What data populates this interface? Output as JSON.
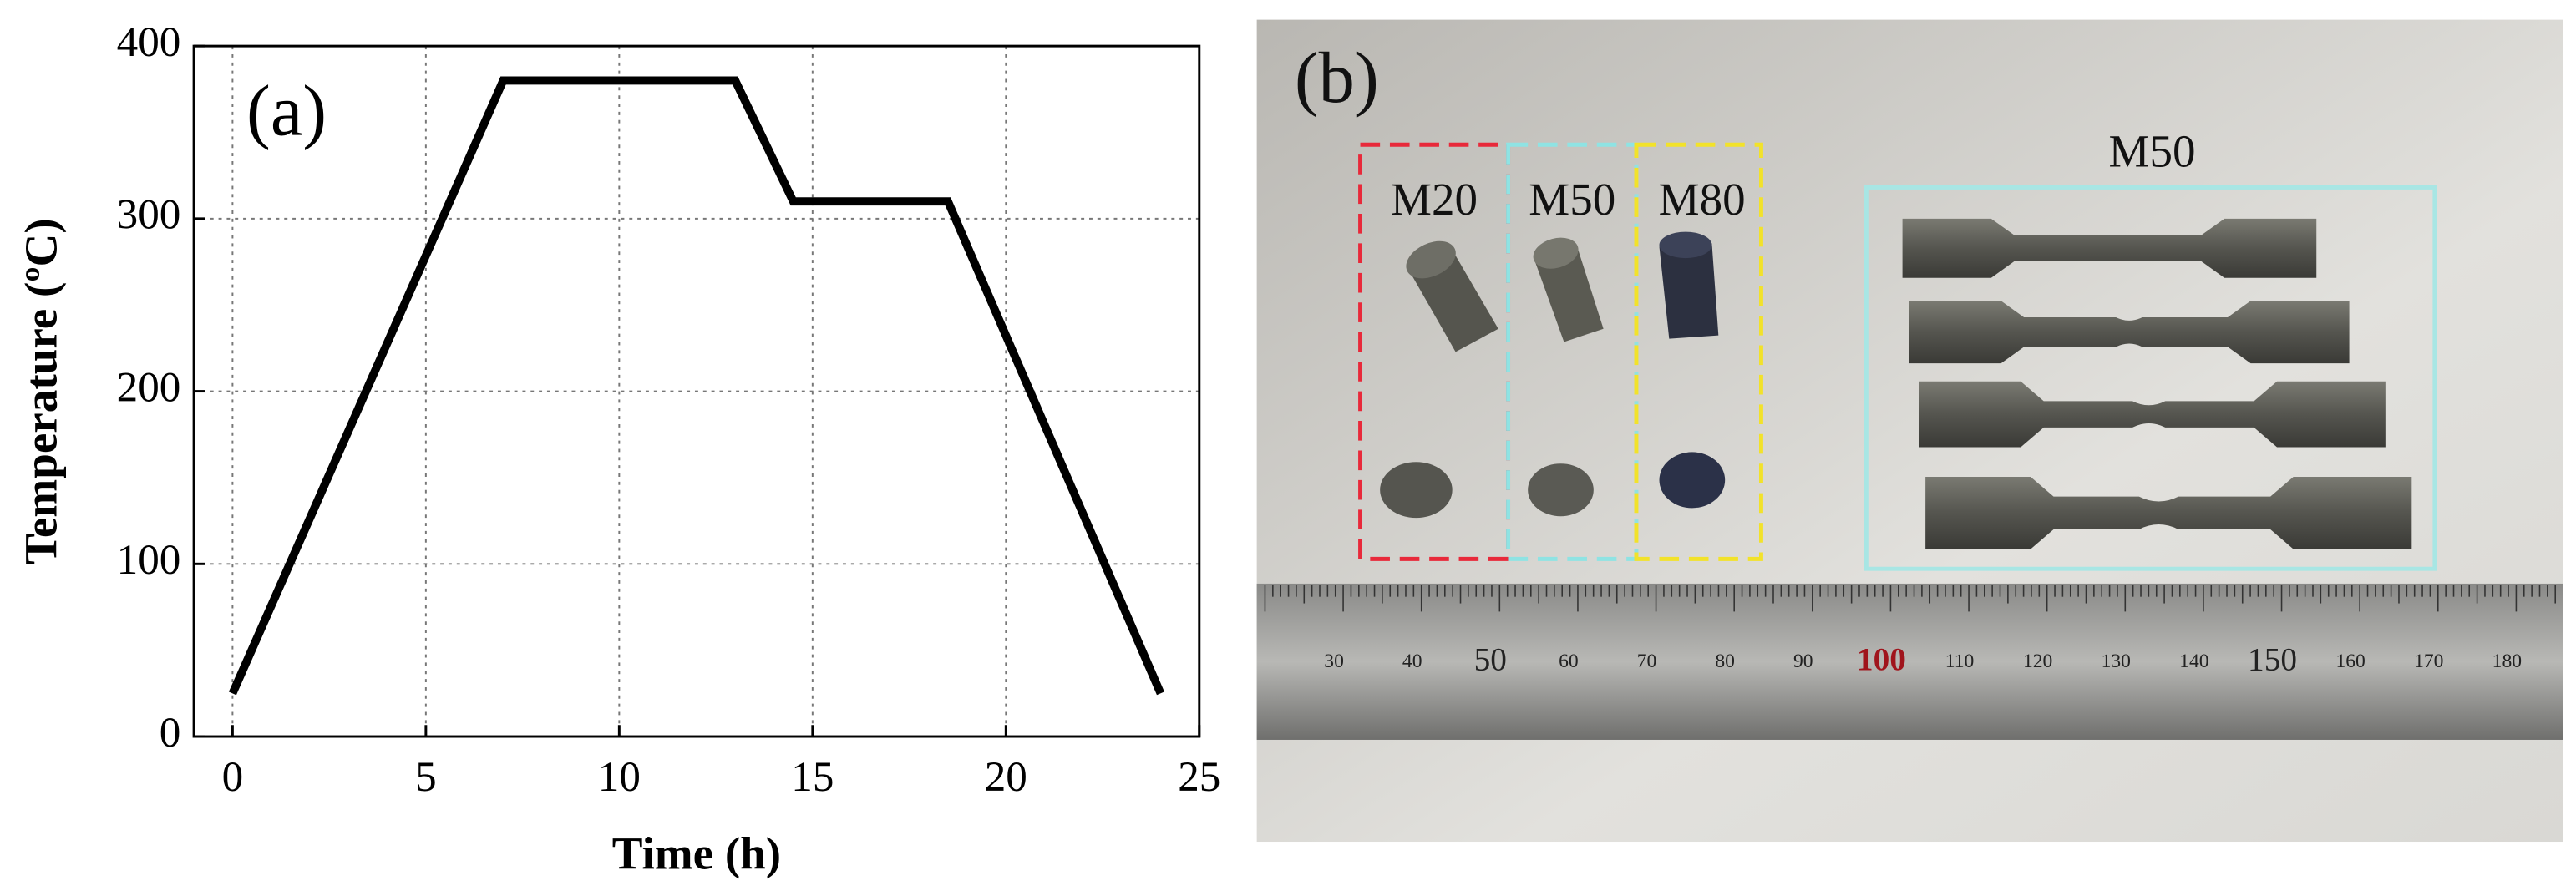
{
  "chart_data": {
    "type": "line",
    "annotation": "(a)",
    "x_label": "Time (h)",
    "y_label": "Temperature (ºC)",
    "x": [
      0,
      7,
      13,
      14.5,
      18.5,
      24
    ],
    "series": [
      {
        "name": "Temperature",
        "color": "#000000",
        "values": [
          25,
          380,
          380,
          310,
          310,
          25
        ]
      }
    ],
    "xlim": [
      -1,
      25
    ],
    "ylim": [
      0,
      400
    ],
    "xticks": [
      0,
      5,
      10,
      15,
      20,
      25
    ],
    "yticks": [
      0,
      100,
      200,
      300,
      400
    ],
    "grid": true
  },
  "photo": {
    "label": "(b)",
    "groups": [
      "M20",
      "M50",
      "M80"
    ],
    "tensile_label": "M50",
    "ruler_labels": [
      "30",
      "40",
      "50",
      "60",
      "70",
      "80",
      "90",
      "100",
      "110",
      "120",
      "130",
      "140",
      "150",
      "160",
      "170",
      "180"
    ]
  }
}
